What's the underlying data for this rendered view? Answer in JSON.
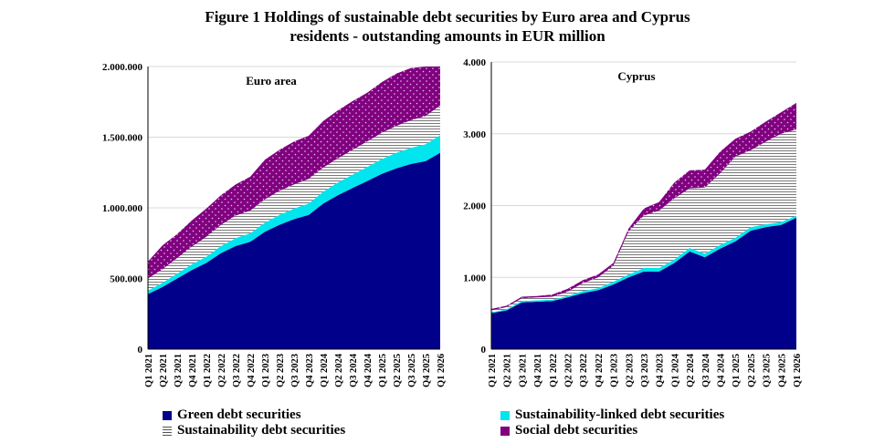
{
  "title_line1": "Figure 1  Holdings of sustainable debt securities by Euro area and Cyprus",
  "title_line2": "residents - outstanding amounts in EUR million",
  "colors": {
    "green": "#00008B",
    "linked": "#00E5EE",
    "sustainability": "#808080",
    "social": "#800080"
  },
  "legend": {
    "green": "Green debt securities",
    "sustainability": "Sustainability debt securities",
    "linked": "Sustainability-linked debt securities",
    "social": "Social debt securities"
  },
  "chart_data": [
    {
      "type": "area",
      "stacked": true,
      "title": "Euro area",
      "ylim": [
        0,
        2000000
      ],
      "yticks": [
        "0",
        "500.000",
        "1.000.000",
        "1.500.000",
        "2.000.000"
      ],
      "ytick_values": [
        0,
        500000,
        1000000,
        1500000,
        2000000
      ],
      "categories": [
        "Q1 2021",
        "Q2 2021",
        "Q3 2021",
        "Q4 2021",
        "Q1 2022",
        "Q2 2022",
        "Q3 2022",
        "Q4 2022",
        "Q1 2023",
        "Q2 2023",
        "Q3 2023",
        "Q4 2023",
        "Q1 2024",
        "Q2 2024",
        "Q3 2024",
        "Q4 2024",
        "Q1 2025",
        "Q2 2025",
        "Q3 2025",
        "Q4 2025",
        "Q1 2026"
      ],
      "series": [
        {
          "name": "Green debt securities",
          "key": "green",
          "values": [
            390000,
            440000,
            500000,
            560000,
            610000,
            680000,
            730000,
            760000,
            830000,
            880000,
            920000,
            950000,
            1030000,
            1090000,
            1140000,
            1190000,
            1240000,
            1280000,
            1310000,
            1330000,
            1390000
          ]
        },
        {
          "name": "Sustainability-linked debt securities",
          "key": "linked",
          "values": [
            25000,
            30000,
            35000,
            40000,
            45000,
            50000,
            55000,
            60000,
            65000,
            70000,
            75000,
            80000,
            85000,
            90000,
            95000,
            100000,
            105000,
            110000,
            115000,
            120000,
            125000
          ]
        },
        {
          "name": "Sustainability debt securities",
          "key": "sustainability",
          "values": [
            85000,
            95000,
            110000,
            125000,
            140000,
            150000,
            160000,
            160000,
            165000,
            170000,
            170000,
            175000,
            170000,
            170000,
            175000,
            180000,
            185000,
            190000,
            195000,
            200000,
            210000
          ]
        },
        {
          "name": "Social debt securities",
          "key": "social",
          "values": [
            120000,
            170000,
            170000,
            185000,
            200000,
            210000,
            220000,
            240000,
            280000,
            290000,
            305000,
            305000,
            330000,
            340000,
            345000,
            345000,
            360000,
            370000,
            370000,
            350000,
            275000
          ]
        }
      ]
    },
    {
      "type": "area",
      "stacked": true,
      "title": "Cyprus",
      "ylim": [
        0,
        4000
      ],
      "yticks": [
        "0",
        "1.000",
        "2.000",
        "3.000",
        "4.000"
      ],
      "ytick_values": [
        0,
        1000,
        2000,
        3000,
        4000
      ],
      "categories": [
        "Q1 2021",
        "Q2 2021",
        "Q3 2021",
        "Q4 2021",
        "Q1 2022",
        "Q2 2022",
        "Q3 2022",
        "Q4 2022",
        "Q1 2023",
        "Q2 2023",
        "Q3 2023",
        "Q4 2023",
        "Q1 2024",
        "Q2 2024",
        "Q3 2024",
        "Q4 2024",
        "Q1 2025",
        "Q2 2025",
        "Q3 2025",
        "Q4 2025",
        "Q1 2026"
      ],
      "series": [
        {
          "name": "Green debt securities",
          "key": "green",
          "values": [
            500,
            540,
            650,
            660,
            670,
            720,
            780,
            820,
            900,
            1000,
            1080,
            1080,
            1200,
            1360,
            1280,
            1400,
            1500,
            1650,
            1700,
            1730,
            1830
          ]
        },
        {
          "name": "Sustainability-linked debt securities",
          "key": "linked",
          "values": [
            10,
            15,
            20,
            20,
            20,
            20,
            30,
            30,
            40,
            40,
            50,
            50,
            50,
            50,
            50,
            50,
            50,
            50,
            40,
            40,
            30
          ]
        },
        {
          "name": "Sustainability debt securities",
          "key": "sustainability",
          "values": [
            30,
            30,
            40,
            40,
            40,
            60,
            110,
            150,
            220,
            600,
            730,
            800,
            850,
            830,
            920,
            1000,
            1130,
            1070,
            1150,
            1230,
            1200
          ]
        },
        {
          "name": "Social debt securities",
          "key": "social",
          "values": [
            20,
            20,
            20,
            20,
            30,
            40,
            40,
            40,
            40,
            40,
            100,
            120,
            220,
            250,
            250,
            300,
            250,
            260,
            280,
            300,
            370
          ]
        }
      ]
    }
  ]
}
